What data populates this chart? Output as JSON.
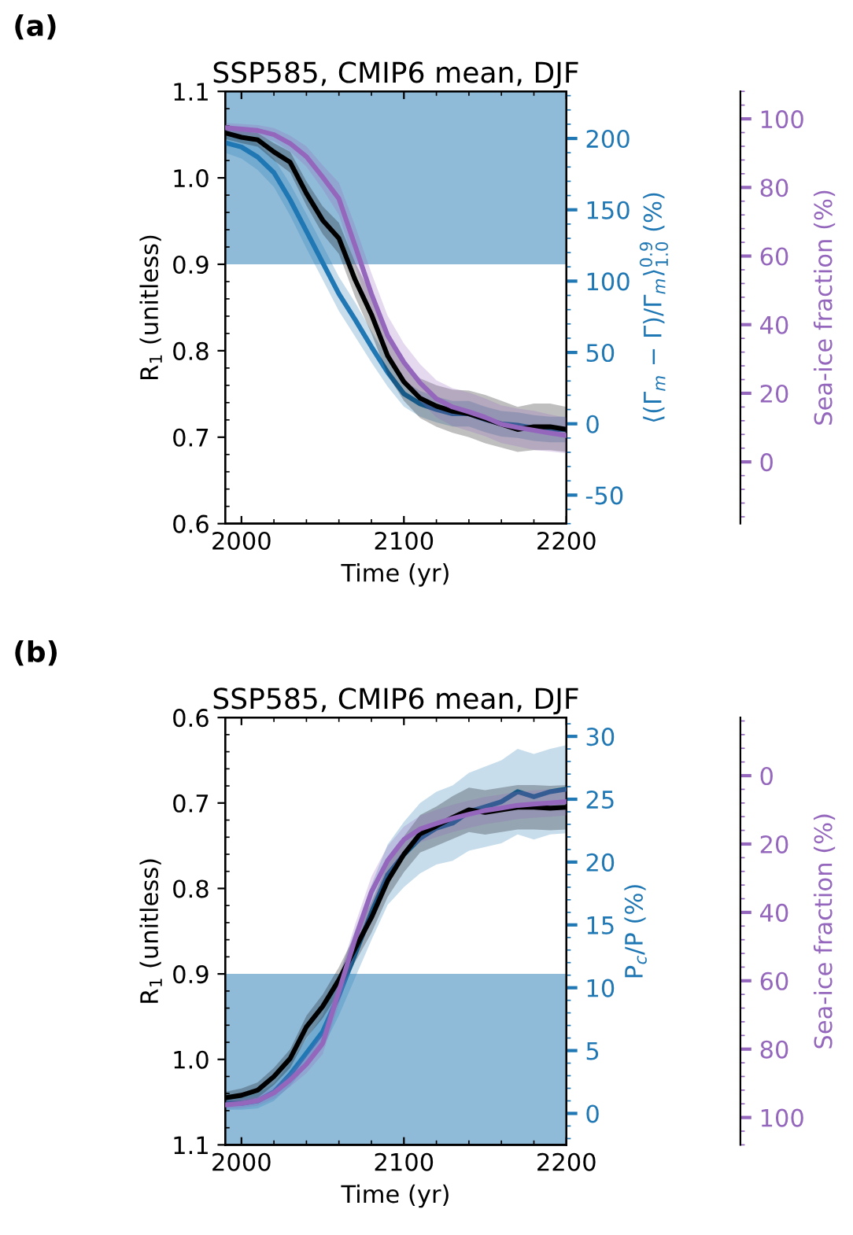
{
  "chart_data": [
    {
      "type": "line",
      "title": "SSP585, CMIP6 mean, DJF",
      "xlabel": "Time (yr)",
      "ylabel": "R$_{1}$ (unitless)",
      "y2label": "⟨(Γ$_{m}$ − Γ)/Γ$_{m}$⟩$^{0.9}$$_{1.0}$ (%)",
      "y3label": "Sea-ice fraction (%)",
      "annotations": [
        "(a)"
      ],
      "x": [
        1990,
        2000,
        2010,
        2020,
        2030,
        2040,
        2050,
        2060,
        2070,
        2080,
        2090,
        2100,
        2110,
        2120,
        2130,
        2140,
        2150,
        2160,
        2170,
        2180,
        2190,
        2200
      ],
      "xlim": [
        1990,
        2200
      ],
      "xticks": [
        2000,
        2100,
        2200
      ],
      "ylim": [
        0.6,
        1.1
      ],
      "yticks": [
        0.6,
        0.7,
        0.8,
        0.9,
        {
          "value": 1,
          "label": "1.0"
        },
        1.1
      ],
      "y2lim": [
        -70,
        233
      ],
      "y2ticks": [
        -50,
        0,
        50,
        100,
        150,
        200
      ],
      "y3lim": [
        -18,
        108
      ],
      "y3ticks": [
        0,
        20,
        40,
        60,
        80,
        100
      ],
      "bands": [
        {
          "axis": "y",
          "from": 0.9,
          "to": 1.1,
          "color": "#8fbbd9"
        }
      ],
      "grid": false,
      "legend": false,
      "series": [
        {
          "axis": "y",
          "color": "#000000",
          "values": [
            1.052,
            1.047,
            1.044,
            1.03,
            1.018,
            0.982,
            0.951,
            0.93,
            0.882,
            0.842,
            0.794,
            0.764,
            0.745,
            0.736,
            0.73,
            0.727,
            0.721,
            0.715,
            0.709,
            0.712,
            0.712,
            0.709
          ],
          "lower": [
            1.045,
            1.04,
            1.036,
            1.02,
            1.006,
            0.968,
            0.935,
            0.912,
            0.862,
            0.82,
            0.772,
            0.742,
            0.722,
            0.712,
            0.705,
            0.7,
            0.693,
            0.688,
            0.683,
            0.685,
            0.685,
            0.683
          ],
          "upper": [
            1.058,
            1.054,
            1.052,
            1.04,
            1.03,
            0.996,
            0.967,
            0.948,
            0.902,
            0.864,
            0.816,
            0.786,
            0.768,
            0.76,
            0.755,
            0.754,
            0.749,
            0.742,
            0.735,
            0.739,
            0.739,
            0.735
          ]
        },
        {
          "axis": "y2",
          "color": "#1f77b4",
          "values": [
            197,
            194,
            187,
            176,
            157,
            135,
            113,
            91,
            73,
            54,
            36,
            21,
            14,
            10,
            7,
            7,
            3,
            0,
            -1,
            -3,
            -4,
            -4
          ],
          "lower": [
            190,
            186,
            178,
            166,
            146,
            123,
            101,
            79,
            61,
            43,
            26,
            12,
            5,
            1,
            -2,
            -2,
            -6,
            -9,
            -10,
            -12,
            -13,
            -13
          ],
          "upper": [
            204,
            202,
            196,
            186,
            168,
            147,
            125,
            103,
            85,
            65,
            46,
            30,
            23,
            19,
            16,
            16,
            12,
            9,
            8,
            6,
            5,
            5
          ]
        },
        {
          "axis": "y3",
          "color": "#9467bd",
          "values": [
            97.4,
            97,
            96.6,
            95.4,
            92.8,
            89,
            83,
            76.7,
            62.9,
            49,
            36.8,
            29,
            23,
            18.4,
            16,
            14.6,
            13,
            11,
            10,
            9.2,
            8.4,
            7.7
          ],
          "lower": [
            96,
            95.5,
            95,
            93.5,
            90.5,
            86,
            79.5,
            72,
            57,
            43,
            31,
            23.5,
            17.5,
            13,
            10.5,
            9,
            7.5,
            5.5,
            4.5,
            3.5,
            3,
            2.5
          ],
          "upper": [
            98.8,
            98.5,
            98.2,
            97.3,
            95.1,
            92,
            86.5,
            81.4,
            68.8,
            55,
            42.6,
            34.5,
            28.5,
            23.8,
            21.5,
            20.2,
            18.5,
            16.5,
            15.5,
            14.9,
            13.8,
            12.9
          ]
        }
      ]
    },
    {
      "type": "line",
      "title": "SSP585, CMIP6 mean, DJF",
      "xlabel": "Time (yr)",
      "ylabel": "R$_{1}$ (unitless)",
      "y2label": "P$_{c}$/P (%)",
      "y3label": "Sea-ice fraction (%)",
      "annotations": [
        "(b)"
      ],
      "x": [
        1990,
        2000,
        2010,
        2020,
        2030,
        2040,
        2050,
        2060,
        2070,
        2080,
        2090,
        2100,
        2110,
        2120,
        2130,
        2140,
        2150,
        2160,
        2170,
        2180,
        2190,
        2200
      ],
      "xlim": [
        1990,
        2200
      ],
      "xticks": [
        2000,
        2100,
        2200
      ],
      "ylim": [
        1.1,
        0.6
      ],
      "yticks": [
        0.6,
        0.7,
        0.8,
        0.9,
        {
          "value": 1,
          "label": "1.0"
        },
        1.1
      ],
      "y2lim": [
        -2.5,
        31.5
      ],
      "y2ticks": [
        0,
        5,
        10,
        15,
        20,
        25,
        30
      ],
      "y3lim": [
        108,
        -17
      ],
      "y3ticks": [
        0,
        20,
        40,
        60,
        80,
        100
      ],
      "bands": [
        {
          "axis": "y",
          "from": 0.9,
          "to": 1.1,
          "color": "#8fbbd9"
        }
      ],
      "grid": false,
      "legend": false,
      "series": [
        {
          "axis": "y",
          "color": "#000000",
          "values": [
            1.045,
            1.042,
            1.036,
            1.02,
            0.999,
            0.962,
            0.938,
            0.907,
            0.87,
            0.834,
            0.791,
            0.76,
            0.736,
            0.727,
            0.717,
            0.708,
            0.711,
            0.708,
            0.705,
            0.705,
            0.706,
            0.705
          ],
          "lower": [
            1.052,
            1.05,
            1.045,
            1.03,
            1.01,
            0.975,
            0.952,
            0.922,
            0.886,
            0.852,
            0.81,
            0.781,
            0.758,
            0.75,
            0.742,
            0.734,
            0.737,
            0.734,
            0.731,
            0.731,
            0.732,
            0.731
          ],
          "upper": [
            1.038,
            1.034,
            1.027,
            1.01,
            0.988,
            0.949,
            0.924,
            0.892,
            0.854,
            0.816,
            0.772,
            0.739,
            0.714,
            0.704,
            0.692,
            0.682,
            0.685,
            0.682,
            0.679,
            0.679,
            0.68,
            0.679
          ]
        },
        {
          "axis": "y2",
          "color": "#1f77b4",
          "values": [
            0.8,
            0.8,
            1,
            1.7,
            3.1,
            4.8,
            6.5,
            9.4,
            12.7,
            16,
            19,
            20.6,
            21.9,
            22.7,
            23.1,
            24,
            24.4,
            24.8,
            25.6,
            25.2,
            25.6,
            25.8
          ],
          "lower": [
            0.3,
            0.3,
            0.4,
            1,
            2.2,
            3.7,
            5.2,
            7.8,
            10.8,
            13.8,
            16.6,
            18,
            19.1,
            19.8,
            20.1,
            20.9,
            21.2,
            21.5,
            22.2,
            21.8,
            22.2,
            22.3
          ],
          "upper": [
            1.3,
            1.3,
            1.6,
            2.4,
            4,
            5.9,
            7.8,
            11,
            14.6,
            18.2,
            21.4,
            23.2,
            24.7,
            25.6,
            26.1,
            27.1,
            27.6,
            28.1,
            29,
            28.6,
            29,
            29.3
          ]
        },
        {
          "axis": "y3",
          "color": "#9467bd",
          "values": [
            96.3,
            95.9,
            95.1,
            92.8,
            89,
            84.4,
            78.3,
            63,
            47.7,
            34,
            24.8,
            18.7,
            15.6,
            14,
            12.5,
            11.3,
            10.2,
            9.5,
            8.7,
            8.3,
            8,
            7.6
          ],
          "lower": [
            97.5,
            97.2,
            96.5,
            94.5,
            91,
            87,
            81.5,
            67,
            52,
            38.5,
            29,
            22.5,
            19.5,
            18,
            16.5,
            15.3,
            14.2,
            13.5,
            12.7,
            12.3,
            12,
            11.6
          ],
          "upper": [
            95.1,
            94.6,
            93.7,
            91.1,
            87,
            81.8,
            75.1,
            59,
            43.4,
            29.5,
            20.6,
            14.9,
            11.7,
            10,
            8.5,
            7.3,
            6.2,
            5.5,
            4.7,
            4.3,
            4,
            3.6
          ]
        }
      ]
    }
  ]
}
